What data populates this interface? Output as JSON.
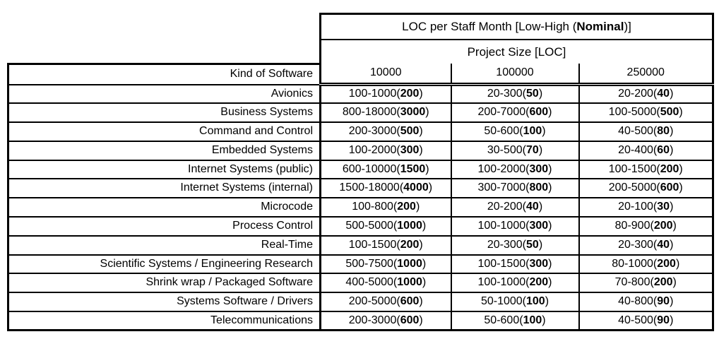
{
  "table": {
    "title_prefix": "LOC per Staff Month [Low-High (",
    "title_bold": "Nominal",
    "title_suffix": ")]",
    "subtitle": "Project Size [LOC]",
    "kind_label": "Kind of Software",
    "size_columns": [
      "10000",
      "100000",
      "250000"
    ],
    "rows": [
      {
        "kind": "Avionics",
        "cells": [
          {
            "range": "100-1000",
            "nominal": "200"
          },
          {
            "range": "20-300",
            "nominal": "50"
          },
          {
            "range": "20-200",
            "nominal": "40"
          }
        ]
      },
      {
        "kind": "Business Systems",
        "cells": [
          {
            "range": "800-18000",
            "nominal": "3000"
          },
          {
            "range": "200-7000",
            "nominal": "600"
          },
          {
            "range": "100-5000",
            "nominal": "500"
          }
        ]
      },
      {
        "kind": "Command and Control",
        "cells": [
          {
            "range": "200-3000",
            "nominal": "500"
          },
          {
            "range": "50-600",
            "nominal": "100"
          },
          {
            "range": "40-500",
            "nominal": "80"
          }
        ]
      },
      {
        "kind": "Embedded Systems",
        "cells": [
          {
            "range": "100-2000",
            "nominal": "300"
          },
          {
            "range": "30-500",
            "nominal": "70"
          },
          {
            "range": "20-400",
            "nominal": "60"
          }
        ]
      },
      {
        "kind": "Internet Systems (public)",
        "cells": [
          {
            "range": "600-10000",
            "nominal": "1500"
          },
          {
            "range": "100-2000",
            "nominal": "300"
          },
          {
            "range": "100-1500",
            "nominal": "200"
          }
        ]
      },
      {
        "kind": "Internet Systems (internal)",
        "cells": [
          {
            "range": "1500-18000",
            "nominal": "4000"
          },
          {
            "range": "300-7000",
            "nominal": "800"
          },
          {
            "range": "200-5000",
            "nominal": "600"
          }
        ]
      },
      {
        "kind": "Microcode",
        "cells": [
          {
            "range": "100-800",
            "nominal": "200"
          },
          {
            "range": "20-200",
            "nominal": "40"
          },
          {
            "range": "20-100",
            "nominal": "30"
          }
        ]
      },
      {
        "kind": "Process Control",
        "cells": [
          {
            "range": "500-5000",
            "nominal": "1000"
          },
          {
            "range": "100-1000",
            "nominal": "300"
          },
          {
            "range": "80-900",
            "nominal": "200"
          }
        ]
      },
      {
        "kind": "Real-Time",
        "cells": [
          {
            "range": "100-1500",
            "nominal": "200"
          },
          {
            "range": "20-300",
            "nominal": "50"
          },
          {
            "range": "20-300",
            "nominal": "40"
          }
        ]
      },
      {
        "kind": "Scientific Systems / Engineering Research",
        "cells": [
          {
            "range": "500-7500",
            "nominal": "1000"
          },
          {
            "range": "100-1500",
            "nominal": "300"
          },
          {
            "range": "80-1000",
            "nominal": "200"
          }
        ]
      },
      {
        "kind": "Shrink wrap / Packaged Software",
        "cells": [
          {
            "range": "400-5000",
            "nominal": "1000"
          },
          {
            "range": "100-1000",
            "nominal": "200"
          },
          {
            "range": "70-800",
            "nominal": "200"
          }
        ]
      },
      {
        "kind": "Systems Software / Drivers",
        "cells": [
          {
            "range": "200-5000",
            "nominal": "600"
          },
          {
            "range": "50-1000",
            "nominal": "100"
          },
          {
            "range": "40-800",
            "nominal": "90"
          }
        ]
      },
      {
        "kind": "Telecommunications",
        "cells": [
          {
            "range": "200-3000",
            "nominal": "600"
          },
          {
            "range": "50-600",
            "nominal": "100"
          },
          {
            "range": "40-500",
            "nominal": "90"
          }
        ]
      }
    ]
  }
}
